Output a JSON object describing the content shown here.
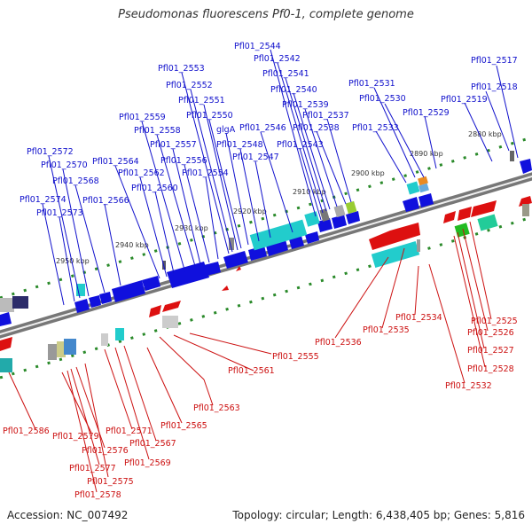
{
  "title": "Pseudomonas fluorescens Pf0-1, complete genome",
  "accession": "Accession: NC_007492",
  "topology": "Topology: circular; Length: 6,438,405 bp; Genes: 5,816",
  "ruler_labels": [
    "2880 kbp",
    "2890 kbp",
    "2900 kbp",
    "2910 kbp",
    "2920 kbp",
    "2930 kbp",
    "2940 kbp",
    "2950 kbp"
  ],
  "forward_genes": [
    "Pfl01_2517",
    "Pfl01_2518",
    "Pfl01_2519",
    "Pfl01_2529",
    "Pfl01_2530",
    "Pfl01_2531",
    "Pfl01_2533",
    "Pfl01_2537",
    "Pfl01_2538",
    "Pfl01_2539",
    "Pfl01_2540",
    "Pfl01_2541",
    "Pfl01_2542",
    "Pfl01_2543",
    "Pfl01_2544",
    "Pfl01_2546",
    "Pfl01_2547",
    "Pfl01_2548",
    "glgA",
    "Pfl01_2550",
    "Pfl01_2551",
    "Pfl01_2552",
    "Pfl01_2553",
    "Pfl01_2554",
    "Pfl01_2556",
    "Pfl01_2557",
    "Pfl01_2558",
    "Pfl01_2559",
    "Pfl01_2560",
    "Pfl01_2562",
    "Pfl01_2564",
    "Pfl01_2566",
    "Pfl01_2568",
    "Pfl01_2570",
    "Pfl01_2572",
    "Pfl01_2573",
    "Pfl01_2574"
  ],
  "reverse_genes": [
    "Pfl01_2525",
    "Pfl01_2526",
    "Pfl01_2527",
    "Pfl01_2528",
    "Pfl01_2532",
    "Pfl01_2534",
    "Pfl01_2535",
    "Pfl01_2536",
    "Pfl01_2555",
    "Pfl01_2561",
    "Pfl01_2563",
    "Pfl01_2565",
    "Pfl01_2567",
    "Pfl01_2569",
    "Pfl01_2571",
    "Pfl01_2575",
    "Pfl01_2576",
    "Pfl01_2577",
    "Pfl01_2578",
    "Pfl01_2579",
    "Pfl01_2586"
  ],
  "colors": {
    "forward": "#1010dd",
    "reverse": "#dd1010",
    "backbone": "#777777",
    "cyan": "#22cccc",
    "green": "#22bb22",
    "gray": "#999999"
  }
}
